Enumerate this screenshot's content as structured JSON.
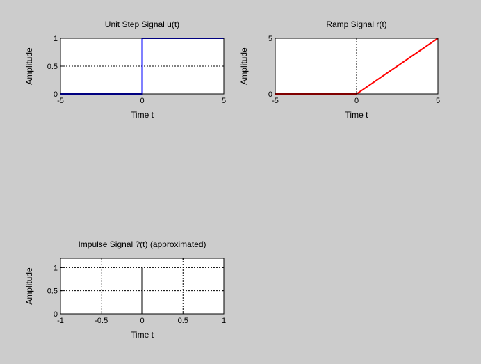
{
  "figure": {
    "background": "#cccccc"
  },
  "chart_data": [
    {
      "type": "line",
      "title": "Unit Step Signal u(t)",
      "xlabel": "Time t",
      "ylabel": "Amplitude",
      "xlim": [
        -5,
        5
      ],
      "ylim": [
        0,
        1
      ],
      "xticks": [
        -5,
        0,
        5
      ],
      "xtick_labels": [
        "-5",
        "0",
        "5"
      ],
      "yticks": [
        0,
        0.5,
        1
      ],
      "ytick_labels": [
        "0",
        "0.5",
        "1"
      ],
      "grid": true,
      "series": [
        {
          "color": "#0000ff",
          "x": [
            -5,
            0,
            0,
            5
          ],
          "y": [
            0,
            0,
            1,
            1
          ]
        }
      ]
    },
    {
      "type": "line",
      "title": "Ramp Signal r(t)",
      "xlabel": "Time t",
      "ylabel": "Amplitude",
      "xlim": [
        -5,
        5
      ],
      "ylim": [
        0,
        5
      ],
      "xticks": [
        -5,
        0,
        5
      ],
      "xtick_labels": [
        "-5",
        "0",
        "5"
      ],
      "yticks": [
        0,
        5
      ],
      "ytick_labels": [
        "0",
        "5"
      ],
      "grid": true,
      "series": [
        {
          "color": "#ff0000",
          "x": [
            -5,
            0,
            5
          ],
          "y": [
            0,
            0,
            5
          ]
        }
      ]
    },
    {
      "type": "line",
      "title": "Impulse Signal ?(t) (approximated)",
      "xlabel": "Time t",
      "ylabel": "Amplitude",
      "xlim": [
        -1,
        1
      ],
      "ylim": [
        0,
        1.2
      ],
      "xticks": [
        -1,
        -0.5,
        0,
        0.5,
        1
      ],
      "xtick_labels": [
        "-1",
        "-0.5",
        "0",
        "0.5",
        "1"
      ],
      "yticks": [
        0,
        0.5,
        1
      ],
      "ytick_labels": [
        "0",
        "0.5",
        "1"
      ],
      "grid": true,
      "series": [
        {
          "color": "#000000",
          "x": [
            0,
            0
          ],
          "y": [
            0,
            1
          ]
        }
      ]
    }
  ]
}
